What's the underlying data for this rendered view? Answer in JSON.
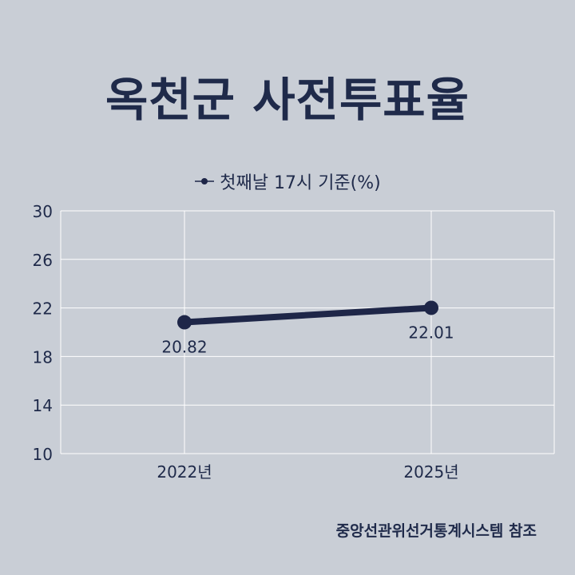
{
  "title": "옥천군 사전투표율",
  "source": "중앙선관위선거통계시스템 참조",
  "chart_data": {
    "type": "line",
    "categories": [
      "2022년",
      "2025년"
    ],
    "series": [
      {
        "name": "첫째날 17시 기준(%)",
        "values": [
          20.82,
          22.01
        ]
      }
    ],
    "data_labels": [
      "20.82",
      "22.01"
    ],
    "yticks": [
      10,
      14,
      18,
      22,
      26,
      30
    ],
    "ylim": [
      10,
      30
    ],
    "grid": true,
    "legend": "top-center",
    "colors": {
      "line": "#1e2648",
      "grid": "#ffffff",
      "text": "#1f2a4a",
      "background": "#c9ced6"
    }
  }
}
